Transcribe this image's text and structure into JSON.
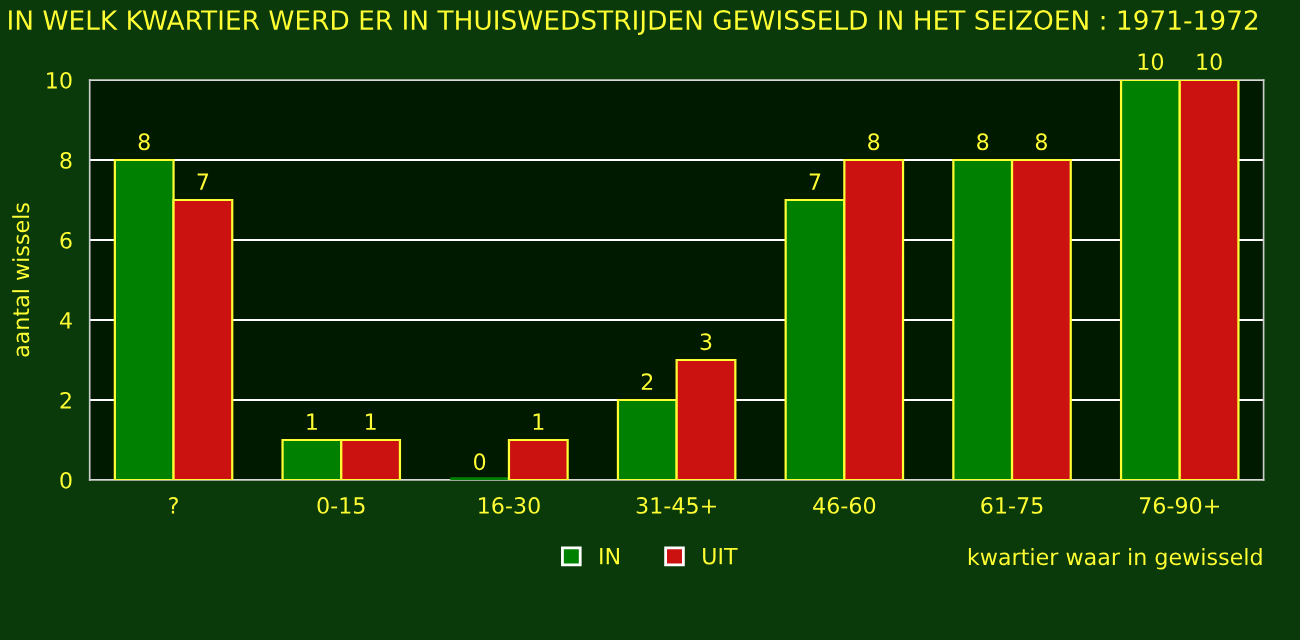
{
  "chart_data": {
    "type": "bar",
    "title": "IN WELK KWARTIER WERD ER IN THUISWEDSTRIJDEN GEWISSELD IN HET SEIZOEN : 1971-1972",
    "xlabel": "kwartier waar in gewisseld",
    "ylabel": "aantal wissels",
    "categories": [
      "?",
      "0-15",
      "16-30",
      "31-45+",
      "46-60",
      "61-75",
      "76-90+"
    ],
    "series": [
      {
        "name": "IN",
        "color": "#008000",
        "values": [
          8,
          1,
          0,
          2,
          7,
          8,
          10
        ]
      },
      {
        "name": "UIT",
        "color": "#cc1111",
        "values": [
          7,
          1,
          1,
          3,
          8,
          8,
          10
        ]
      }
    ],
    "ylim": [
      0,
      10
    ],
    "yticks": [
      0,
      2,
      4,
      6,
      8,
      10
    ],
    "grid": "y",
    "legend": "bottom",
    "data_labels": true
  }
}
